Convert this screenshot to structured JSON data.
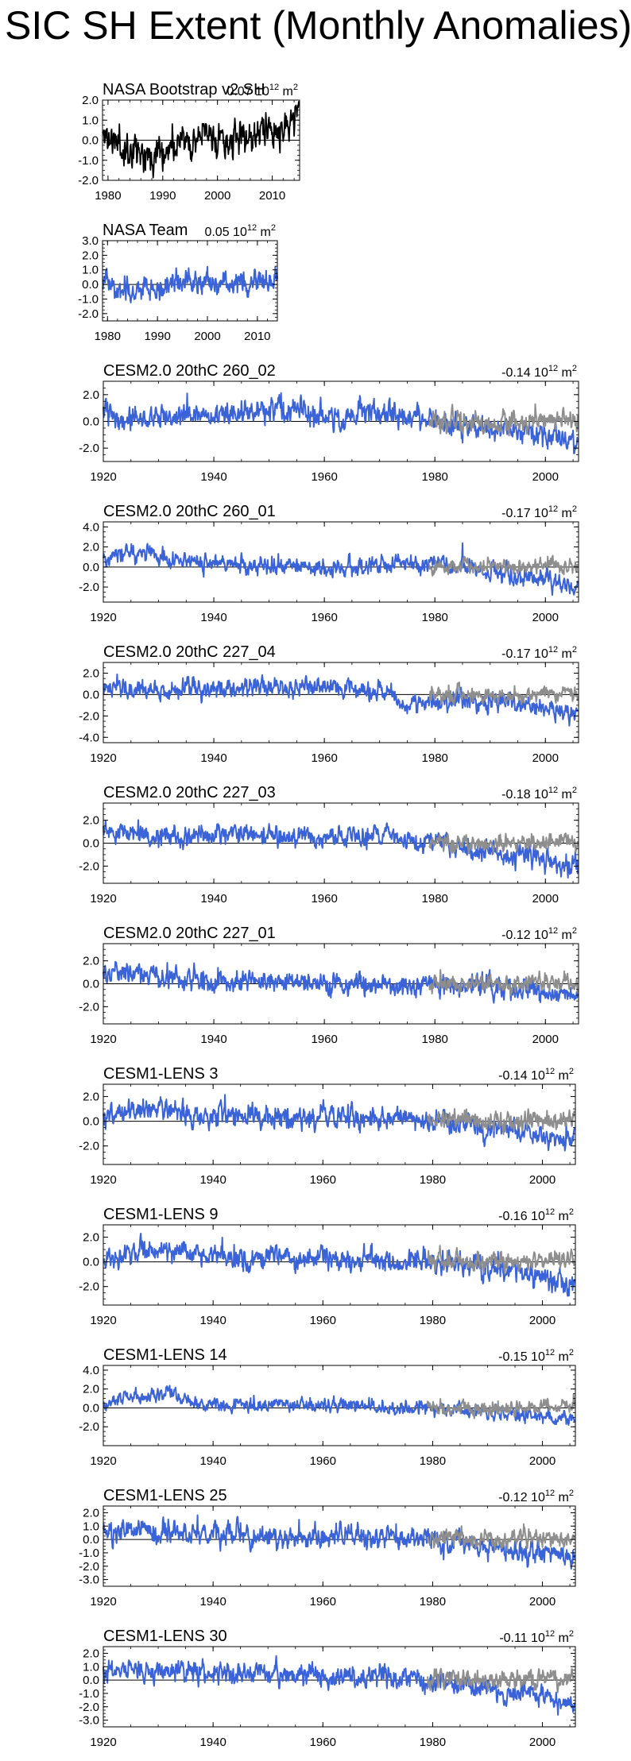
{
  "page_title": "SIC SH Extent (Monthly Anomalies)",
  "unit_text": "10",
  "unit_exponent": "12",
  "unit_suffix": " m",
  "unit_power": "2",
  "colors": {
    "model": "#3b63d8",
    "observed": "#8e8e8e",
    "obs_black": "#000000",
    "zero_line": "#000000"
  },
  "chart_data": [
    {
      "type": "line",
      "title": "NASA Bootstrap v2 SH",
      "trend": "0.07",
      "xlim": [
        1979,
        2015
      ],
      "ylim": [
        -2.0,
        2.0
      ],
      "yticks": [
        -2.0,
        -1.0,
        0.0,
        1.0,
        2.0
      ],
      "xticks": [
        1980,
        1990,
        2000,
        2010
      ],
      "series": [
        {
          "color": "obs_black",
          "start": 1979.0,
          "end": 2014.9,
          "anchors": [
            [
              1979.0,
              0.3
            ],
            [
              1983,
              -0.4
            ],
            [
              1988,
              -0.6
            ],
            [
              1992,
              -0.3
            ],
            [
              1998,
              0.2
            ],
            [
              2002,
              -0.1
            ],
            [
              2006,
              0.2
            ],
            [
              2008,
              0.4
            ],
            [
              2010,
              0.3
            ],
            [
              2013,
              0.8
            ],
            [
              2014.9,
              1.4
            ]
          ],
          "noise": 0.55,
          "seed": 11
        }
      ]
    },
    {
      "type": "line",
      "title": "NASA Team",
      "trend": "0.05",
      "xlim": [
        1979,
        2014
      ],
      "ylim": [
        -2.5,
        3.0
      ],
      "yticks": [
        -2.0,
        -1.0,
        0.0,
        1.0,
        2.0,
        3.0
      ],
      "xticks": [
        1980,
        1990,
        2000,
        2010
      ],
      "series": [
        {
          "color": "model",
          "start": 1979.0,
          "end": 2014.0,
          "anchors": [
            [
              1979.0,
              0.3
            ],
            [
              1983,
              -0.4
            ],
            [
              1988,
              -0.4
            ],
            [
              1992,
              -0.1
            ],
            [
              1998,
              0.2
            ],
            [
              2002,
              0.0
            ],
            [
              2006,
              0.2
            ],
            [
              2010,
              0.3
            ],
            [
              2014.0,
              0.7
            ]
          ],
          "noise": 0.5,
          "seed": 23
        }
      ]
    },
    {
      "type": "line",
      "title": "CESM2.0 20thC 260_02",
      "trend": "-0.14",
      "xlim": [
        1920,
        2006
      ],
      "ylim": [
        -3.0,
        3.0
      ],
      "yticks": [
        -2.0,
        0.0,
        2.0
      ],
      "xticks": [
        1920,
        1940,
        1960,
        1980,
        2000
      ],
      "series": [
        {
          "color": "model",
          "start": 1920.0,
          "end": 2005.9,
          "anchors": [
            [
              1920.0,
              0.5
            ],
            [
              1930,
              0.2
            ],
            [
              1950,
              0.8
            ],
            [
              1960,
              0.4
            ],
            [
              1972,
              0.7
            ],
            [
              1980,
              0.0
            ],
            [
              1990,
              -0.5
            ],
            [
              2000,
              -1.0
            ],
            [
              2005.9,
              -1.4
            ]
          ],
          "noise": 0.55,
          "seed": 31
        },
        {
          "color": "observed",
          "start": 1979.0,
          "end": 2005.9,
          "anchors": [
            [
              1979.0,
              0.0
            ],
            [
              1992,
              0.0
            ],
            [
              2005.9,
              0.1
            ]
          ],
          "noise": 0.45,
          "seed": 32
        }
      ]
    },
    {
      "type": "line",
      "title": "CESM2.0 20thC 260_01",
      "trend": "-0.17",
      "xlim": [
        1920,
        2006
      ],
      "ylim": [
        -3.5,
        4.5
      ],
      "yticks": [
        -2.0,
        0.0,
        2.0,
        4.0
      ],
      "xticks": [
        1920,
        1940,
        1960,
        1980,
        2000
      ],
      "series": [
        {
          "color": "model",
          "start": 1920.0,
          "end": 2005.9,
          "anchors": [
            [
              1920.0,
              0.5
            ],
            [
              1925,
              1.6
            ],
            [
              1932,
              0.6
            ],
            [
              1950,
              0.2
            ],
            [
              1960,
              -0.2
            ],
            [
              1975,
              0.5
            ],
            [
              1985,
              0.0
            ],
            [
              1995,
              -1.0
            ],
            [
              2005.9,
              -2.0
            ]
          ],
          "noise": 0.55,
          "seed": 41
        },
        {
          "color": "observed",
          "start": 1979.0,
          "end": 2005.9,
          "anchors": [
            [
              1979.0,
              0.0
            ],
            [
              1992,
              0.0
            ],
            [
              2005.9,
              0.1
            ]
          ],
          "noise": 0.45,
          "seed": 42
        }
      ]
    },
    {
      "type": "line",
      "title": "CESM2.0 20thC 227_04",
      "trend": "-0.17",
      "xlim": [
        1920,
        2006
      ],
      "ylim": [
        -4.5,
        3.0
      ],
      "yticks": [
        -4.0,
        -2.0,
        0.0,
        2.0
      ],
      "xticks": [
        1920,
        1940,
        1960,
        1980,
        2000
      ],
      "series": [
        {
          "color": "model",
          "start": 1920.0,
          "end": 2005.9,
          "anchors": [
            [
              1920.0,
              0.8
            ],
            [
              1930,
              0.3
            ],
            [
              1950,
              0.8
            ],
            [
              1960,
              0.6
            ],
            [
              1970,
              0.5
            ],
            [
              1975,
              -1.0
            ],
            [
              1985,
              -0.5
            ],
            [
              1995,
              -0.8
            ],
            [
              2005.9,
              -2.0
            ]
          ],
          "noise": 0.55,
          "seed": 51
        },
        {
          "color": "observed",
          "start": 1979.0,
          "end": 2005.9,
          "anchors": [
            [
              1979.0,
              0.0
            ],
            [
              1992,
              0.0
            ],
            [
              2005.9,
              0.1
            ]
          ],
          "noise": 0.45,
          "seed": 52
        }
      ]
    },
    {
      "type": "line",
      "title": "CESM2.0 20thC 227_03",
      "trend": "-0.18",
      "xlim": [
        1920,
        2006
      ],
      "ylim": [
        -3.5,
        3.5
      ],
      "yticks": [
        -2.0,
        0.0,
        2.0
      ],
      "xticks": [
        1920,
        1940,
        1960,
        1980,
        2000
      ],
      "series": [
        {
          "color": "model",
          "start": 1920.0,
          "end": 2005.9,
          "anchors": [
            [
              1920.0,
              1.0
            ],
            [
              1930,
              0.4
            ],
            [
              1945,
              0.9
            ],
            [
              1960,
              0.3
            ],
            [
              1970,
              0.8
            ],
            [
              1980,
              0.0
            ],
            [
              1990,
              -0.8
            ],
            [
              2000,
              -1.3
            ],
            [
              2005.9,
              -2.0
            ]
          ],
          "noise": 0.55,
          "seed": 61
        },
        {
          "color": "observed",
          "start": 1979.0,
          "end": 2005.9,
          "anchors": [
            [
              1979.0,
              0.0
            ],
            [
              1992,
              0.0
            ],
            [
              2005.9,
              0.1
            ]
          ],
          "noise": 0.45,
          "seed": 62
        }
      ]
    },
    {
      "type": "line",
      "title": "CESM2.0 20thC 227_01",
      "trend": "-0.12",
      "xlim": [
        1920,
        2006
      ],
      "ylim": [
        -3.5,
        3.5
      ],
      "yticks": [
        -2.0,
        0.0,
        2.0
      ],
      "xticks": [
        1920,
        1940,
        1960,
        1980,
        2000
      ],
      "series": [
        {
          "color": "model",
          "start": 1920.0,
          "end": 2005.9,
          "anchors": [
            [
              1920.0,
              1.0
            ],
            [
              1930,
              0.6
            ],
            [
              1945,
              0.3
            ],
            [
              1960,
              0.0
            ],
            [
              1975,
              -0.2
            ],
            [
              1990,
              -0.2
            ],
            [
              2000,
              -0.8
            ],
            [
              2005.9,
              -1.0
            ]
          ],
          "noise": 0.55,
          "seed": 71
        },
        {
          "color": "observed",
          "start": 1979.0,
          "end": 2005.9,
          "anchors": [
            [
              1979.0,
              0.0
            ],
            [
              1992,
              0.0
            ],
            [
              2005.9,
              0.1
            ]
          ],
          "noise": 0.45,
          "seed": 72
        }
      ]
    },
    {
      "type": "line",
      "title": "CESM1-LENS 3",
      "trend": "-0.14",
      "xlim": [
        1920,
        2006
      ],
      "ylim": [
        -3.5,
        3.0
      ],
      "yticks": [
        -2.0,
        0.0,
        2.0
      ],
      "xticks": [
        1920,
        1940,
        1960,
        1980,
        2000
      ],
      "series": [
        {
          "color": "model",
          "start": 1920.0,
          "end": 2005.9,
          "anchors": [
            [
              1920.0,
              0.6
            ],
            [
              1928,
              1.0
            ],
            [
              1940,
              0.4
            ],
            [
              1960,
              0.2
            ],
            [
              1975,
              0.2
            ],
            [
              1985,
              -0.3
            ],
            [
              1995,
              -0.8
            ],
            [
              2005.9,
              -1.6
            ]
          ],
          "noise": 0.55,
          "seed": 81
        },
        {
          "color": "observed",
          "start": 1979.0,
          "end": 2005.9,
          "anchors": [
            [
              1979.0,
              0.0
            ],
            [
              1992,
              0.0
            ],
            [
              2005.9,
              0.1
            ]
          ],
          "noise": 0.45,
          "seed": 82
        }
      ]
    },
    {
      "type": "line",
      "title": "CESM1-LENS 9",
      "trend": "-0.16",
      "xlim": [
        1920,
        2006
      ],
      "ylim": [
        -3.5,
        3.0
      ],
      "yticks": [
        -2.0,
        0.0,
        2.0
      ],
      "xticks": [
        1920,
        1940,
        1960,
        1980,
        2000
      ],
      "series": [
        {
          "color": "model",
          "start": 1920.0,
          "end": 2005.9,
          "anchors": [
            [
              1920.0,
              0.0
            ],
            [
              1930,
              1.1
            ],
            [
              1940,
              0.5
            ],
            [
              1960,
              0.2
            ],
            [
              1975,
              0.0
            ],
            [
              1985,
              -0.3
            ],
            [
              1995,
              -0.8
            ],
            [
              2005.9,
              -2.0
            ]
          ],
          "noise": 0.55,
          "seed": 91
        },
        {
          "color": "observed",
          "start": 1979.0,
          "end": 2005.9,
          "anchors": [
            [
              1979.0,
              0.0
            ],
            [
              1992,
              0.0
            ],
            [
              2005.9,
              0.1
            ]
          ],
          "noise": 0.45,
          "seed": 92
        }
      ]
    },
    {
      "type": "line",
      "title": "CESM1-LENS 14",
      "trend": "-0.15",
      "xlim": [
        1920,
        2006
      ],
      "ylim": [
        -4.0,
        4.5
      ],
      "yticks": [
        -2.0,
        0.0,
        2.0,
        4.0
      ],
      "xticks": [
        1920,
        1940,
        1960,
        1980,
        2000
      ],
      "series": [
        {
          "color": "model",
          "start": 1920.0,
          "end": 2005.9,
          "anchors": [
            [
              1920.0,
              0.5
            ],
            [
              1925,
              1.2
            ],
            [
              1932,
              1.8
            ],
            [
              1936,
              0.4
            ],
            [
              1950,
              0.3
            ],
            [
              1960,
              0.3
            ],
            [
              1975,
              0.0
            ],
            [
              1990,
              -0.4
            ],
            [
              2005.9,
              -1.2
            ]
          ],
          "noise": 0.45,
          "seed": 101
        },
        {
          "color": "observed",
          "start": 1979.0,
          "end": 2005.9,
          "anchors": [
            [
              1979.0,
              0.0
            ],
            [
              1992,
              0.0
            ],
            [
              2005.9,
              0.1
            ]
          ],
          "noise": 0.45,
          "seed": 102
        }
      ]
    },
    {
      "type": "line",
      "title": "CESM1-LENS 25",
      "trend": "-0.12",
      "xlim": [
        1920,
        2006
      ],
      "ylim": [
        -3.5,
        2.5
      ],
      "yticks": [
        -3.0,
        -2.0,
        -1.0,
        0.0,
        1.0,
        2.0
      ],
      "xticks": [
        1920,
        1940,
        1960,
        1980,
        2000
      ],
      "series": [
        {
          "color": "model",
          "start": 1920.0,
          "end": 2005.9,
          "anchors": [
            [
              1920.0,
              0.5
            ],
            [
              1930,
              0.7
            ],
            [
              1945,
              0.3
            ],
            [
              1960,
              0.2
            ],
            [
              1975,
              0.1
            ],
            [
              1985,
              -0.3
            ],
            [
              1995,
              -0.8
            ],
            [
              2005.9,
              -1.4
            ]
          ],
          "noise": 0.5,
          "seed": 111
        },
        {
          "color": "observed",
          "start": 1979.0,
          "end": 2005.9,
          "anchors": [
            [
              1979.0,
              0.0
            ],
            [
              1992,
              0.0
            ],
            [
              2005.9,
              0.1
            ]
          ],
          "noise": 0.4,
          "seed": 112
        }
      ]
    },
    {
      "type": "line",
      "title": "CESM1-LENS 30",
      "trend": "-0.11",
      "xlim": [
        1920,
        2006
      ],
      "ylim": [
        -3.5,
        2.5
      ],
      "yticks": [
        -3.0,
        -2.0,
        -1.0,
        0.0,
        1.0,
        2.0
      ],
      "xticks": [
        1920,
        1940,
        1960,
        1980,
        2000
      ],
      "series": [
        {
          "color": "model",
          "start": 1920.0,
          "end": 2005.9,
          "anchors": [
            [
              1920.0,
              0.8
            ],
            [
              1930,
              0.6
            ],
            [
              1950,
              0.4
            ],
            [
              1960,
              0.3
            ],
            [
              1975,
              0.1
            ],
            [
              1985,
              -0.4
            ],
            [
              1995,
              -1.0
            ],
            [
              2005.9,
              -1.8
            ]
          ],
          "noise": 0.5,
          "seed": 121
        },
        {
          "color": "observed",
          "start": 1979.0,
          "end": 2005.9,
          "anchors": [
            [
              1979.0,
              0.0
            ],
            [
              1992,
              0.0
            ],
            [
              2005.9,
              0.1
            ]
          ],
          "noise": 0.4,
          "seed": 122
        }
      ]
    }
  ]
}
